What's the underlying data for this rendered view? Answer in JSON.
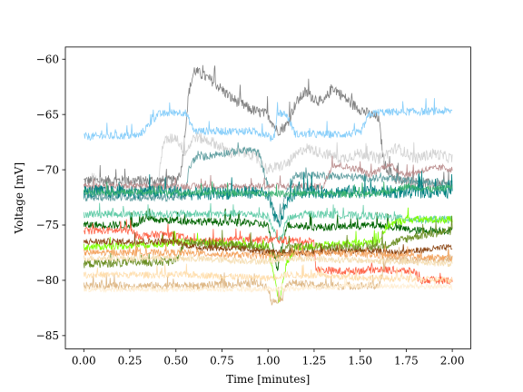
{
  "chart_data": {
    "type": "line",
    "title": "",
    "xlabel": "Time [minutes]",
    "ylabel": "Voltage [mV]",
    "xlim": [
      -0.1,
      2.1
    ],
    "ylim": [
      -86.2,
      -58.9
    ],
    "grid": false,
    "legend": "none",
    "xticks": [
      0.0,
      0.25,
      0.5,
      0.75,
      1.0,
      1.25,
      1.5,
      1.75,
      2.0
    ],
    "xtick_labels": [
      "0.00",
      "0.25",
      "0.50",
      "0.75",
      "1.00",
      "1.25",
      "1.50",
      "1.75",
      "2.00"
    ],
    "yticks": [
      -60,
      -65,
      -70,
      -75,
      -80,
      -85
    ],
    "ytick_labels": [
      "−60",
      "−65",
      "−70",
      "−75",
      "−80",
      "−85"
    ],
    "series": [
      {
        "color": "#808080",
        "noise": 0.5,
        "points": [
          [
            0.0,
            -71.0
          ],
          [
            0.3,
            -71.0
          ],
          [
            0.5,
            -71.0
          ],
          [
            0.53,
            -70.0
          ],
          [
            0.57,
            -63.0
          ],
          [
            0.6,
            -61.0
          ],
          [
            0.7,
            -62.0
          ],
          [
            0.8,
            -63.5
          ],
          [
            0.9,
            -64.5
          ],
          [
            0.95,
            -64.8
          ],
          [
            1.0,
            -65.0
          ],
          [
            1.05,
            -66.5
          ],
          [
            1.1,
            -66.0
          ],
          [
            1.15,
            -64.0
          ],
          [
            1.2,
            -63.0
          ],
          [
            1.25,
            -63.5
          ],
          [
            1.3,
            -64.0
          ],
          [
            1.35,
            -62.5
          ],
          [
            1.45,
            -64.0
          ],
          [
            1.55,
            -65.0
          ],
          [
            1.6,
            -65.3
          ],
          [
            1.63,
            -69.5
          ],
          [
            1.7,
            -71.0
          ],
          [
            2.0,
            -71.5
          ]
        ]
      },
      {
        "color": "#87CEFA",
        "noise": 0.35,
        "points": [
          [
            0.0,
            -67.0
          ],
          [
            0.3,
            -66.9
          ],
          [
            0.35,
            -66.0
          ],
          [
            0.4,
            -65.0
          ],
          [
            0.5,
            -64.8
          ],
          [
            0.55,
            -64.8
          ],
          [
            0.6,
            -66.5
          ],
          [
            0.9,
            -66.5
          ],
          [
            1.0,
            -66.8
          ],
          [
            1.03,
            -67.5
          ],
          [
            1.05,
            -64.8
          ],
          [
            1.1,
            -65.0
          ],
          [
            1.15,
            -66.8
          ],
          [
            1.4,
            -66.8
          ],
          [
            1.5,
            -66.7
          ],
          [
            1.55,
            -65.0
          ],
          [
            1.6,
            -64.8
          ],
          [
            2.0,
            -64.7
          ]
        ]
      },
      {
        "color": "#D3D3D3",
        "noise": 0.5,
        "points": [
          [
            0.0,
            -72.0
          ],
          [
            0.4,
            -72.0
          ],
          [
            0.43,
            -67.5
          ],
          [
            0.5,
            -67.0
          ],
          [
            0.55,
            -68.5
          ],
          [
            0.6,
            -67.0
          ],
          [
            0.7,
            -67.5
          ],
          [
            0.8,
            -68.5
          ],
          [
            0.9,
            -68.5
          ],
          [
            1.0,
            -70.0
          ],
          [
            1.1,
            -69.5
          ],
          [
            1.2,
            -68.0
          ],
          [
            1.4,
            -69.0
          ],
          [
            1.5,
            -68.5
          ],
          [
            1.6,
            -69.0
          ],
          [
            1.7,
            -68.0
          ],
          [
            1.8,
            -69.0
          ],
          [
            1.9,
            -68.5
          ],
          [
            2.0,
            -69.0
          ]
        ]
      },
      {
        "color": "#5F9EA0",
        "noise": 0.35,
        "points": [
          [
            0.0,
            -72.5
          ],
          [
            0.55,
            -72.5
          ],
          [
            0.57,
            -70.0
          ],
          [
            0.6,
            -69.0
          ],
          [
            0.75,
            -68.5
          ],
          [
            0.9,
            -68.2
          ],
          [
            0.95,
            -68.5
          ],
          [
            1.0,
            -71.5
          ],
          [
            1.05,
            -75.0
          ],
          [
            1.1,
            -72.0
          ],
          [
            1.15,
            -70.5
          ],
          [
            1.3,
            -70.5
          ],
          [
            1.6,
            -70.8
          ],
          [
            1.8,
            -71.0
          ],
          [
            2.0,
            -71.2
          ]
        ]
      },
      {
        "color": "#BC8F8F",
        "noise": 0.3,
        "points": [
          [
            0.0,
            -71.5
          ],
          [
            1.3,
            -71.5
          ],
          [
            1.35,
            -69.5
          ],
          [
            1.5,
            -70.0
          ],
          [
            1.55,
            -70.5
          ],
          [
            1.65,
            -69.5
          ],
          [
            1.75,
            -70.5
          ],
          [
            1.85,
            -70.0
          ],
          [
            1.95,
            -69.8
          ],
          [
            2.0,
            -70.0
          ]
        ]
      },
      {
        "color": "#008080",
        "noise": 0.6,
        "points": [
          [
            0.0,
            -72.0
          ],
          [
            0.5,
            -72.0
          ],
          [
            0.6,
            -72.2
          ],
          [
            0.95,
            -72.0
          ],
          [
            1.0,
            -72.5
          ],
          [
            1.03,
            -74.0
          ],
          [
            1.06,
            -75.0
          ],
          [
            1.1,
            -73.0
          ],
          [
            1.15,
            -72.0
          ],
          [
            1.6,
            -72.0
          ],
          [
            2.0,
            -72.0
          ]
        ]
      },
      {
        "color": "#3CB371",
        "noise": 0.3,
        "points": [
          [
            0.0,
            -72.0
          ],
          [
            1.6,
            -72.2
          ],
          [
            1.75,
            -71.5
          ],
          [
            1.9,
            -71.8
          ],
          [
            2.0,
            -71.5
          ]
        ]
      },
      {
        "color": "#006400",
        "noise": 0.35,
        "points": [
          [
            0.0,
            -75.0
          ],
          [
            0.28,
            -75.0
          ],
          [
            0.32,
            -74.5
          ],
          [
            0.9,
            -74.8
          ],
          [
            1.0,
            -75.0
          ],
          [
            1.05,
            -79.0
          ],
          [
            1.1,
            -75.0
          ],
          [
            1.3,
            -75.2
          ],
          [
            1.6,
            -75.0
          ],
          [
            1.8,
            -75.5
          ],
          [
            2.0,
            -75.5
          ]
        ]
      },
      {
        "color": "#66CDAA",
        "noise": 0.35,
        "points": [
          [
            0.0,
            -74.0
          ],
          [
            0.9,
            -74.0
          ],
          [
            1.0,
            -74.2
          ],
          [
            1.03,
            -75.5
          ],
          [
            1.07,
            -76.5
          ],
          [
            1.1,
            -74.5
          ],
          [
            1.2,
            -74.0
          ],
          [
            1.6,
            -74.2
          ],
          [
            1.8,
            -74.5
          ],
          [
            2.0,
            -74.5
          ]
        ]
      },
      {
        "color": "#FF6347",
        "noise": 0.35,
        "points": [
          [
            0.0,
            -75.5
          ],
          [
            0.25,
            -75.5
          ],
          [
            0.3,
            -76.0
          ],
          [
            0.45,
            -75.8
          ],
          [
            0.55,
            -76.2
          ],
          [
            0.6,
            -76.5
          ],
          [
            1.0,
            -76.3
          ],
          [
            1.25,
            -76.5
          ],
          [
            1.26,
            -79.0
          ],
          [
            1.4,
            -79.2
          ],
          [
            1.6,
            -79.0
          ],
          [
            1.8,
            -79.2
          ],
          [
            1.82,
            -80.0
          ],
          [
            2.0,
            -80.0
          ]
        ]
      },
      {
        "color": "#7FFF00",
        "noise": 0.35,
        "points": [
          [
            0.0,
            -77.0
          ],
          [
            0.3,
            -76.8
          ],
          [
            0.6,
            -76.5
          ],
          [
            0.9,
            -76.8
          ],
          [
            1.0,
            -77.0
          ],
          [
            1.03,
            -79.5
          ],
          [
            1.06,
            -82.0
          ],
          [
            1.1,
            -78.5
          ],
          [
            1.15,
            -77.0
          ],
          [
            1.6,
            -76.5
          ],
          [
            1.65,
            -75.0
          ],
          [
            1.75,
            -74.5
          ],
          [
            2.0,
            -74.5
          ]
        ]
      },
      {
        "color": "#6B8E23",
        "noise": 0.4,
        "points": [
          [
            0.0,
            -78.5
          ],
          [
            0.5,
            -78.3
          ],
          [
            0.55,
            -76.5
          ],
          [
            0.9,
            -77.0
          ],
          [
            1.0,
            -77.0
          ],
          [
            1.05,
            -78.0
          ],
          [
            1.1,
            -77.0
          ],
          [
            1.6,
            -77.0
          ],
          [
            1.8,
            -76.0
          ],
          [
            2.0,
            -75.5
          ]
        ]
      },
      {
        "color": "#8B4513",
        "noise": 0.3,
        "points": [
          [
            0.0,
            -76.5
          ],
          [
            0.5,
            -76.5
          ],
          [
            0.6,
            -77.0
          ],
          [
            0.9,
            -77.2
          ],
          [
            1.0,
            -77.5
          ],
          [
            1.2,
            -77.5
          ],
          [
            1.5,
            -77.3
          ],
          [
            1.7,
            -77.5
          ],
          [
            2.0,
            -77.0
          ]
        ]
      },
      {
        "color": "#DEB887",
        "noise": 0.35,
        "points": [
          [
            0.0,
            -80.5
          ],
          [
            0.3,
            -80.5
          ],
          [
            0.6,
            -80.5
          ],
          [
            0.95,
            -80.3
          ],
          [
            1.0,
            -80.6
          ],
          [
            1.02,
            -82.0
          ],
          [
            1.08,
            -81.5
          ],
          [
            1.1,
            -80.2
          ],
          [
            1.3,
            -80.5
          ],
          [
            1.6,
            -80.5
          ],
          [
            1.65,
            -78.0
          ],
          [
            1.8,
            -78.2
          ],
          [
            2.0,
            -78.0
          ]
        ]
      },
      {
        "color": "#FFDEAD",
        "noise": 0.3,
        "points": [
          [
            0.0,
            -79.5
          ],
          [
            0.6,
            -79.5
          ],
          [
            1.0,
            -79.8
          ],
          [
            1.1,
            -79.5
          ],
          [
            1.6,
            -79.8
          ],
          [
            2.0,
            -80.0
          ]
        ]
      },
      {
        "color": "#F5DEB3",
        "noise": 0.3,
        "points": [
          [
            0.0,
            -78.0
          ],
          [
            0.5,
            -78.0
          ],
          [
            1.0,
            -78.3
          ],
          [
            1.1,
            -78.0
          ],
          [
            1.5,
            -78.2
          ],
          [
            2.0,
            -78.5
          ]
        ]
      },
      {
        "color": "#F4A460",
        "noise": 0.3,
        "points": [
          [
            0.0,
            -77.5
          ],
          [
            0.5,
            -77.5
          ],
          [
            1.0,
            -77.8
          ],
          [
            1.3,
            -77.5
          ],
          [
            1.7,
            -77.8
          ],
          [
            2.0,
            -78.0
          ]
        ]
      },
      {
        "color": "#FFEFD5",
        "noise": 0.25,
        "points": [
          [
            0.0,
            -80.8
          ],
          [
            1.0,
            -80.8
          ],
          [
            1.5,
            -80.5
          ],
          [
            2.0,
            -80.6
          ]
        ]
      }
    ]
  }
}
